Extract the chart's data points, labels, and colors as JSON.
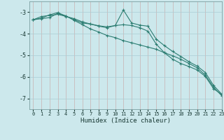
{
  "xlabel": "Humidex (Indice chaleur)",
  "bg_color": "#cce8ec",
  "grid_color": "#aacdd4",
  "line_color": "#2d7d72",
  "xlim": [
    -0.5,
    23
  ],
  "ylim": [
    -7.5,
    -2.5
  ],
  "yticks": [
    -7,
    -6,
    -5,
    -4,
    -3
  ],
  "xticks": [
    0,
    1,
    2,
    3,
    4,
    5,
    6,
    7,
    8,
    9,
    10,
    11,
    12,
    13,
    14,
    15,
    16,
    17,
    18,
    19,
    20,
    21,
    22,
    23
  ],
  "series1_x": [
    0,
    1,
    2,
    3,
    4,
    5,
    6,
    7,
    8,
    9,
    10,
    11,
    12,
    13,
    14,
    15,
    16,
    17,
    18,
    19,
    20,
    21,
    22,
    23
  ],
  "series1_y": [
    -3.35,
    -3.2,
    -3.15,
    -3.1,
    -3.2,
    -3.3,
    -3.45,
    -3.55,
    -3.65,
    -3.72,
    -3.62,
    -2.9,
    -3.5,
    -3.6,
    -3.65,
    -4.25,
    -4.55,
    -4.82,
    -5.05,
    -5.3,
    -5.5,
    -5.8,
    -6.4,
    -6.8
  ],
  "series2_x": [
    0,
    1,
    2,
    3,
    4,
    5,
    6,
    7,
    8,
    9,
    10,
    11,
    12,
    13,
    14,
    15,
    16,
    17,
    18,
    19,
    20,
    21,
    22,
    23
  ],
  "series2_y": [
    -3.35,
    -3.3,
    -3.25,
    -3.05,
    -3.18,
    -3.35,
    -3.5,
    -3.55,
    -3.63,
    -3.68,
    -3.62,
    -3.58,
    -3.62,
    -3.72,
    -3.88,
    -4.48,
    -4.88,
    -5.18,
    -5.38,
    -5.52,
    -5.68,
    -5.98,
    -6.55,
    -6.82
  ],
  "series3_x": [
    0,
    1,
    2,
    3,
    4,
    5,
    6,
    7,
    8,
    9,
    10,
    11,
    12,
    13,
    14,
    15,
    16,
    17,
    18,
    19,
    20,
    21,
    22,
    23
  ],
  "series3_y": [
    -3.35,
    -3.28,
    -3.12,
    -3.02,
    -3.18,
    -3.38,
    -3.58,
    -3.78,
    -3.92,
    -4.08,
    -4.18,
    -4.32,
    -4.42,
    -4.52,
    -4.62,
    -4.72,
    -4.88,
    -5.02,
    -5.18,
    -5.38,
    -5.58,
    -5.92,
    -6.48,
    -6.88
  ]
}
